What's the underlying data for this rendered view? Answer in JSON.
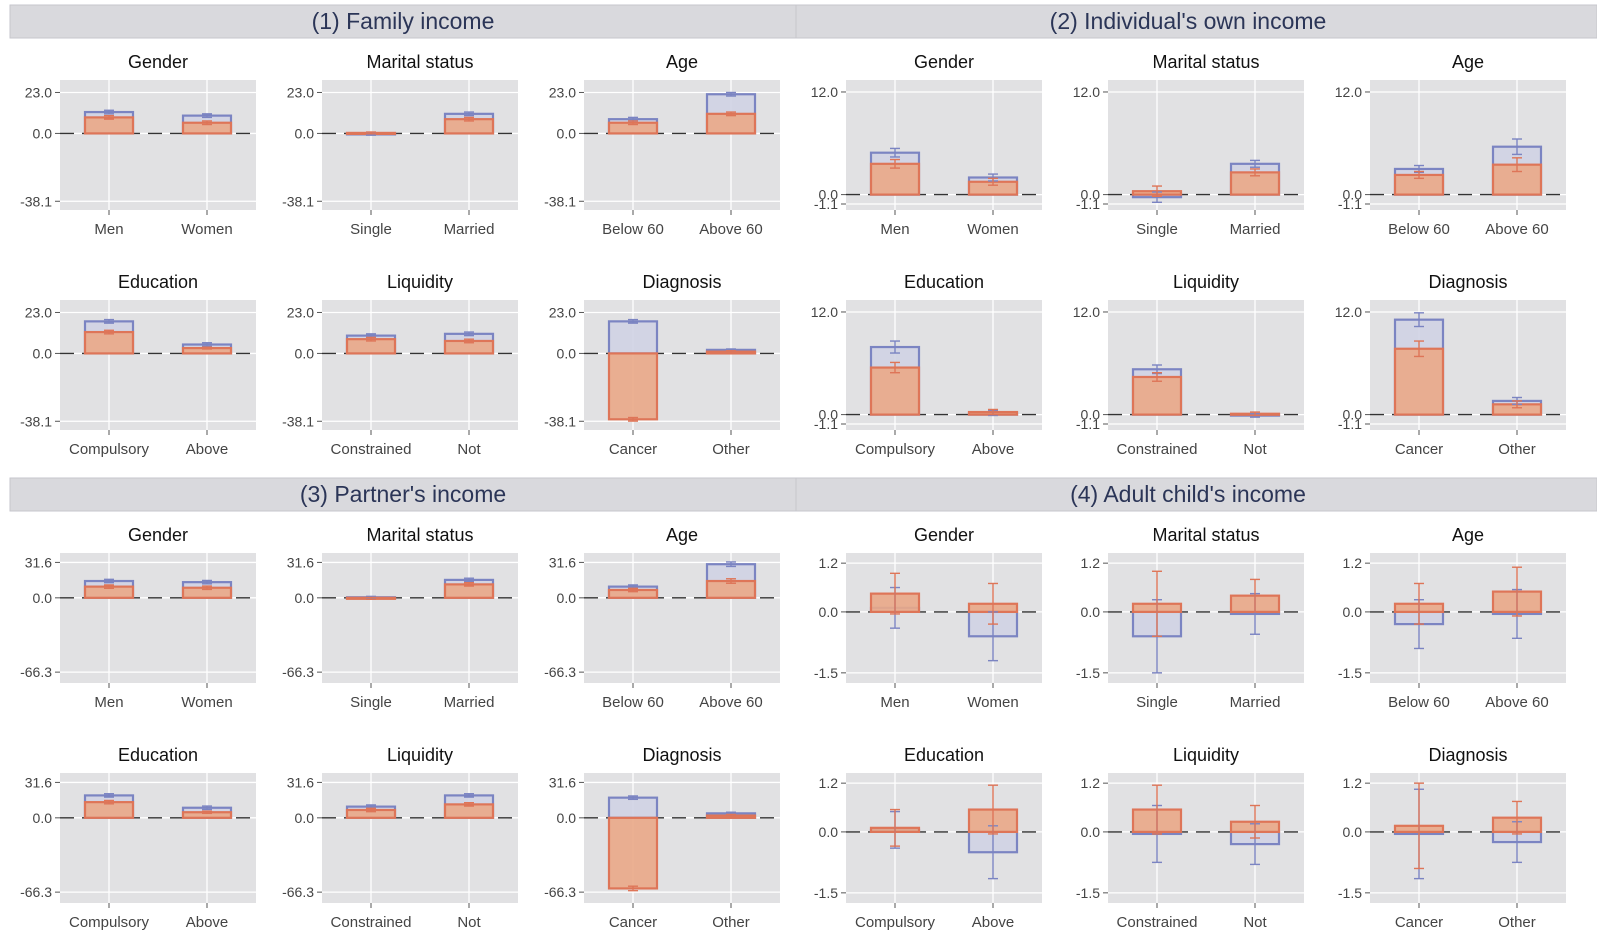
{
  "colors": {
    "base_bar": "#7b84c2",
    "base_fill": "#cfd1e4",
    "treat_bar": "#de7558",
    "treat_fill": "#eaa887",
    "panel_bg": "#e1e1e3",
    "band_bg": "#d9d9dd"
  },
  "chart_data": [
    {
      "title": "(1) Family income",
      "yticks": [
        23.0,
        0.0,
        -38.1
      ],
      "ytick_labels": [
        "23.0",
        "0.0",
        "-38.1"
      ],
      "ylim": [
        -43,
        30
      ],
      "panels": [
        {
          "title": "Gender",
          "type": "bar",
          "categories": [
            "Men",
            "Women"
          ],
          "series": [
            {
              "values": [
                12,
                10
              ],
              "errors": [
                1.0,
                1.0
              ]
            },
            {
              "values": [
                9,
                6
              ],
              "errors": [
                1.0,
                1.0
              ]
            }
          ]
        },
        {
          "title": "Marital status",
          "type": "bar",
          "categories": [
            "Single",
            "Married"
          ],
          "series": [
            {
              "values": [
                -0.5,
                11
              ],
              "errors": [
                0.5,
                1.0
              ]
            },
            {
              "values": [
                0.3,
                8
              ],
              "errors": [
                0.5,
                1.0
              ]
            }
          ]
        },
        {
          "title": "Age",
          "type": "bar",
          "categories": [
            "Below 60",
            "Above 60"
          ],
          "series": [
            {
              "values": [
                8,
                22
              ],
              "errors": [
                1.0,
                1.0
              ]
            },
            {
              "values": [
                6,
                11
              ],
              "errors": [
                1.0,
                1.0
              ]
            }
          ]
        },
        {
          "title": "Education",
          "type": "bar",
          "categories": [
            "Compulsory",
            "Above"
          ],
          "series": [
            {
              "values": [
                18,
                5
              ],
              "errors": [
                1.0,
                1.0
              ]
            },
            {
              "values": [
                12,
                3
              ],
              "errors": [
                1.0,
                0.5
              ]
            }
          ]
        },
        {
          "title": "Liquidity",
          "type": "bar",
          "categories": [
            "Constrained",
            "Not"
          ],
          "series": [
            {
              "values": [
                10,
                11
              ],
              "errors": [
                1.0,
                1.0
              ]
            },
            {
              "values": [
                8,
                7
              ],
              "errors": [
                1.0,
                1.0
              ]
            }
          ]
        },
        {
          "title": "Diagnosis",
          "type": "bar",
          "categories": [
            "Cancer",
            "Other"
          ],
          "series": [
            {
              "values": [
                18,
                2
              ],
              "errors": [
                1.0,
                0.5
              ]
            },
            {
              "values": [
                -37,
                1
              ],
              "errors": [
                1.0,
                0.5
              ]
            }
          ]
        }
      ]
    },
    {
      "title": "(2) Individual's own income",
      "yticks": [
        12.0,
        0.0,
        -1.1
      ],
      "ytick_labels": [
        "12.0",
        "0.0",
        "-1.1"
      ],
      "ylim": [
        -1.8,
        13.4
      ],
      "panels": [
        {
          "title": "Gender",
          "type": "bar",
          "categories": [
            "Men",
            "Women"
          ],
          "series": [
            {
              "values": [
                4.9,
                2.0
              ],
              "errors": [
                0.5,
                0.4
              ]
            },
            {
              "values": [
                3.6,
                1.5
              ],
              "errors": [
                0.5,
                0.4
              ]
            }
          ]
        },
        {
          "title": "Marital status",
          "type": "bar",
          "categories": [
            "Single",
            "Married"
          ],
          "series": [
            {
              "values": [
                -0.3,
                3.6
              ],
              "errors": [
                0.6,
                0.4
              ]
            },
            {
              "values": [
                0.4,
                2.6
              ],
              "errors": [
                0.6,
                0.4
              ]
            }
          ]
        },
        {
          "title": "Age",
          "type": "bar",
          "categories": [
            "Below 60",
            "Above 60"
          ],
          "series": [
            {
              "values": [
                3.0,
                5.6
              ],
              "errors": [
                0.4,
                0.9
              ]
            },
            {
              "values": [
                2.3,
                3.5
              ],
              "errors": [
                0.4,
                0.8
              ]
            }
          ]
        },
        {
          "title": "Education",
          "type": "bar",
          "categories": [
            "Compulsory",
            "Above"
          ],
          "series": [
            {
              "values": [
                7.9,
                0.2
              ],
              "errors": [
                0.7,
                0.3
              ]
            },
            {
              "values": [
                5.5,
                0.3
              ],
              "errors": [
                0.6,
                0.3
              ]
            }
          ]
        },
        {
          "title": "Liquidity",
          "type": "bar",
          "categories": [
            "Constrained",
            "Not"
          ],
          "series": [
            {
              "values": [
                5.3,
                -0.1
              ],
              "errors": [
                0.5,
                0.2
              ]
            },
            {
              "values": [
                4.4,
                0.1
              ],
              "errors": [
                0.5,
                0.2
              ]
            }
          ]
        },
        {
          "title": "Diagnosis",
          "type": "bar",
          "categories": [
            "Cancer",
            "Other"
          ],
          "series": [
            {
              "values": [
                11.1,
                1.6
              ],
              "errors": [
                0.8,
                0.4
              ]
            },
            {
              "values": [
                7.7,
                1.2
              ],
              "errors": [
                0.9,
                0.4
              ]
            }
          ]
        }
      ]
    },
    {
      "title": "(3) Partner's income",
      "yticks": [
        31.6,
        0.0,
        -66.3
      ],
      "ytick_labels": [
        "31.6",
        "0.0",
        "-66.3"
      ],
      "ylim": [
        -76,
        40
      ],
      "panels": [
        {
          "title": "Gender",
          "type": "bar",
          "categories": [
            "Men",
            "Women"
          ],
          "series": [
            {
              "values": [
                15,
                14
              ],
              "errors": [
                1.5,
                1.5
              ]
            },
            {
              "values": [
                10,
                9
              ],
              "errors": [
                1.5,
                1.5
              ]
            }
          ]
        },
        {
          "title": "Marital status",
          "type": "bar",
          "categories": [
            "Single",
            "Married"
          ],
          "series": [
            {
              "values": [
                0.5,
                16
              ],
              "errors": [
                0.8,
                1.5
              ]
            },
            {
              "values": [
                -0.5,
                12
              ],
              "errors": [
                0.8,
                1.5
              ]
            }
          ]
        },
        {
          "title": "Age",
          "type": "bar",
          "categories": [
            "Below 60",
            "Above 60"
          ],
          "series": [
            {
              "values": [
                10,
                30
              ],
              "errors": [
                1.5,
                2.0
              ]
            },
            {
              "values": [
                7,
                15
              ],
              "errors": [
                1.5,
                2.0
              ]
            }
          ]
        },
        {
          "title": "Education",
          "type": "bar",
          "categories": [
            "Compulsory",
            "Above"
          ],
          "series": [
            {
              "values": [
                20,
                9
              ],
              "errors": [
                1.5,
                1.5
              ]
            },
            {
              "values": [
                14,
                5
              ],
              "errors": [
                1.5,
                1.0
              ]
            }
          ]
        },
        {
          "title": "Liquidity",
          "type": "bar",
          "categories": [
            "Constrained",
            "Not"
          ],
          "series": [
            {
              "values": [
                10,
                20
              ],
              "errors": [
                1.5,
                1.5
              ]
            },
            {
              "values": [
                7,
                12
              ],
              "errors": [
                1.5,
                1.5
              ]
            }
          ]
        },
        {
          "title": "Diagnosis",
          "type": "bar",
          "categories": [
            "Cancer",
            "Other"
          ],
          "series": [
            {
              "values": [
                18,
                4
              ],
              "errors": [
                1.5,
                1.0
              ]
            },
            {
              "values": [
                -63,
                2
              ],
              "errors": [
                2.0,
                1.0
              ]
            }
          ]
        }
      ]
    },
    {
      "title": "(4) Adult child's income",
      "yticks": [
        1.2,
        0.0,
        -1.5
      ],
      "ytick_labels": [
        "1.2",
        "0.0",
        "-1.5"
      ],
      "ylim": [
        -1.75,
        1.45
      ],
      "panels": [
        {
          "title": "Gender",
          "type": "bar",
          "categories": [
            "Men",
            "Women"
          ],
          "series": [
            {
              "values": [
                0.1,
                -0.6
              ],
              "errors": [
                0.5,
                0.6
              ]
            },
            {
              "values": [
                0.45,
                0.2
              ],
              "errors": [
                0.5,
                0.5
              ]
            }
          ]
        },
        {
          "title": "Marital status",
          "type": "bar",
          "categories": [
            "Single",
            "Married"
          ],
          "series": [
            {
              "values": [
                -0.6,
                -0.05
              ],
              "errors": [
                0.9,
                0.5
              ]
            },
            {
              "values": [
                0.2,
                0.4
              ],
              "errors": [
                0.8,
                0.4
              ]
            }
          ]
        },
        {
          "title": "Age",
          "type": "bar",
          "categories": [
            "Below 60",
            "Above 60"
          ],
          "series": [
            {
              "values": [
                -0.3,
                -0.05
              ],
              "errors": [
                0.6,
                0.6
              ]
            },
            {
              "values": [
                0.2,
                0.5
              ],
              "errors": [
                0.5,
                0.6
              ]
            }
          ]
        },
        {
          "title": "Education",
          "type": "bar",
          "categories": [
            "Compulsory",
            "Above"
          ],
          "series": [
            {
              "values": [
                0.05,
                -0.5
              ],
              "errors": [
                0.45,
                0.65
              ]
            },
            {
              "values": [
                0.1,
                0.55
              ],
              "errors": [
                0.45,
                0.6
              ]
            }
          ]
        },
        {
          "title": "Liquidity",
          "type": "bar",
          "categories": [
            "Constrained",
            "Not"
          ],
          "series": [
            {
              "values": [
                -0.05,
                -0.3
              ],
              "errors": [
                0.7,
                0.5
              ]
            },
            {
              "values": [
                0.55,
                0.25
              ],
              "errors": [
                0.6,
                0.4
              ]
            }
          ]
        },
        {
          "title": "Diagnosis",
          "type": "bar",
          "categories": [
            "Cancer",
            "Other"
          ],
          "series": [
            {
              "values": [
                -0.05,
                -0.25
              ],
              "errors": [
                1.1,
                0.5
              ]
            },
            {
              "values": [
                0.15,
                0.35
              ],
              "errors": [
                1.05,
                0.4
              ]
            }
          ]
        }
      ]
    }
  ]
}
